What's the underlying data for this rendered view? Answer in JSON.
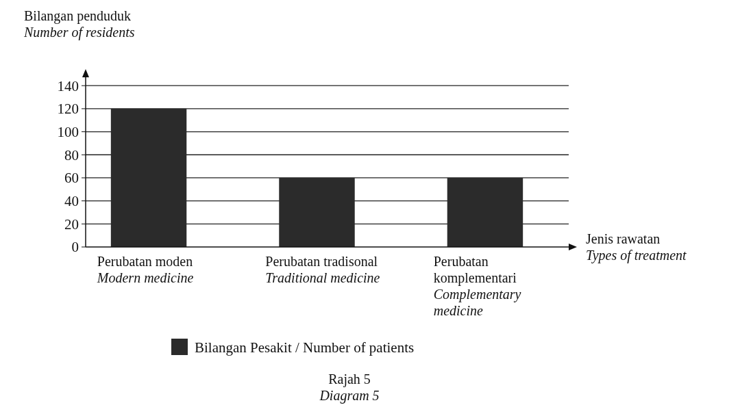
{
  "chart_data": {
    "type": "bar",
    "xlabel": "Jenis rawatan\nTypes of treatment",
    "ylabel": "Bilangan penduduk\nNumber of residents",
    "categories": [
      "Perubatan moden\nModern medicine",
      "Perubatan tradisonal\nTraditional medicine",
      "Perubatan\nkomplementari\nComplementary\nmedicine"
    ],
    "series": [
      {
        "name": "Bilangan Pesakit / Number of patients",
        "color": "#2b2b2b",
        "values": [
          120,
          60,
          60
        ]
      }
    ],
    "ylim": [
      0,
      152
    ],
    "yticks": [
      0,
      20,
      40,
      60,
      80,
      100,
      120,
      140
    ],
    "grid": "y",
    "legend": "bottom",
    "annotations": [
      "Rajah 5\nDiagram 5"
    ]
  }
}
